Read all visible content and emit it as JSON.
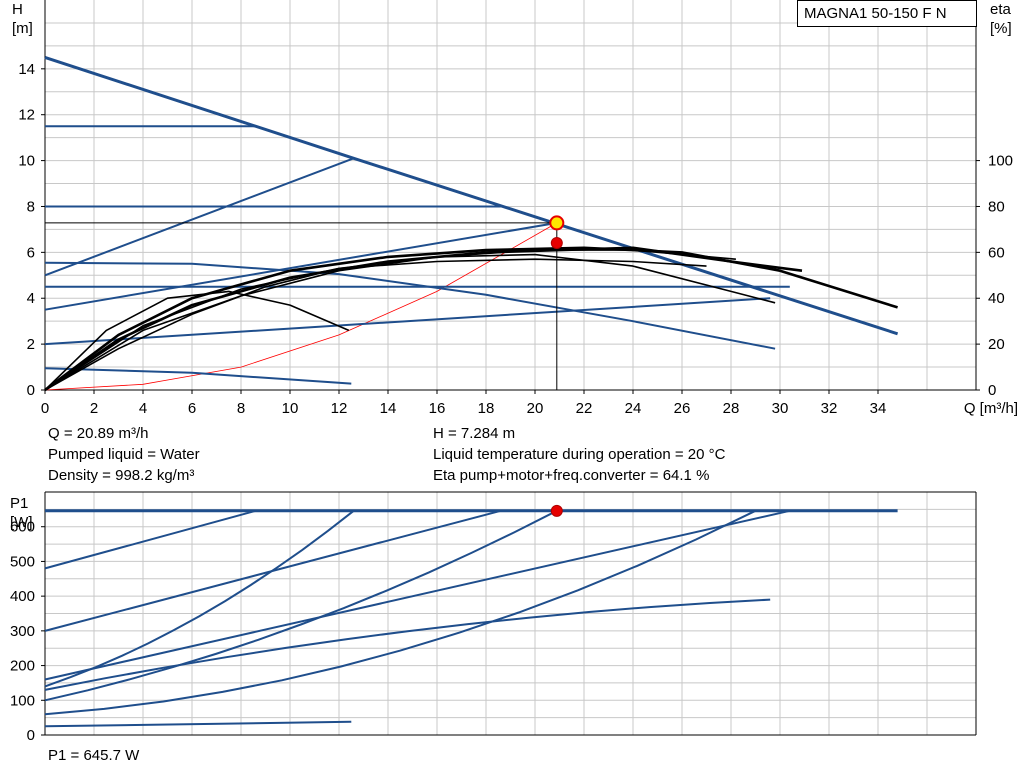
{
  "model": "MAGNA1 50-150 F N",
  "top_info": {
    "left": [
      "Q = 20.89 m³/h",
      "Pumped liquid = Water",
      "Density = 998.2 kg/m³"
    ],
    "right": [
      "H = 7.284 m",
      "Liquid temperature during operation = 20 °C",
      "Eta pump+motor+freq.converter = 64.1 %"
    ]
  },
  "bottom_info": "P1 = 645.7 W",
  "colors": {
    "curve_blue": "#1f4e8c",
    "eta_black": "#000000",
    "system_red": "#ff0000",
    "marker_red": "#e60000",
    "marker_yellow": "#ffe600",
    "grid": "#c8c8c8"
  },
  "chart_data": [
    {
      "type": "line",
      "title": "",
      "xlabel": "Q [m³/h]",
      "ylabel": "H\n[m]",
      "y2label": "eta\n[%]",
      "xlim": [
        0,
        38
      ],
      "ylim": [
        0,
        17
      ],
      "y2lim": [
        0,
        170
      ],
      "x_ticks": [
        0,
        2,
        4,
        6,
        8,
        10,
        12,
        14,
        16,
        18,
        20,
        22,
        24,
        26,
        28,
        30,
        32,
        34
      ],
      "y_ticks": [
        0,
        2,
        4,
        6,
        8,
        10,
        12,
        14
      ],
      "y2_ticks": [
        0,
        20,
        40,
        60,
        80,
        100
      ],
      "grid": true,
      "head_curves": [
        {
          "role": "max",
          "x": [
            0,
            12.6,
            34.8
          ],
          "y": [
            14.5,
            10.1,
            2.45
          ]
        },
        {
          "role": "prop",
          "x": [
            0,
            12.6
          ],
          "y": [
            5.0,
            10.1
          ]
        },
        {
          "role": "const",
          "x": [
            0,
            8.6
          ],
          "y": [
            11.5,
            11.5
          ]
        },
        {
          "role": "const",
          "x": [
            0,
            18.6
          ],
          "y": [
            8.0,
            8.0
          ]
        },
        {
          "role": "const",
          "x": [
            0,
            30.4
          ],
          "y": [
            4.5,
            4.5
          ]
        },
        {
          "role": "prop",
          "x": [
            0,
            29.6
          ],
          "y": [
            2.0,
            4.0
          ]
        },
        {
          "role": "prop",
          "x": [
            0,
            20.89
          ],
          "y": [
            3.5,
            7.284
          ]
        },
        {
          "role": "min",
          "x": [
            0,
            6,
            12,
            18,
            24,
            29.8
          ],
          "y": [
            5.55,
            5.5,
            5.05,
            4.15,
            3.0,
            1.8
          ]
        },
        {
          "role": "min",
          "x": [
            0,
            6,
            12.5
          ],
          "y": [
            0.95,
            0.75,
            0.28
          ]
        }
      ],
      "eta_curves": [
        {
          "x": [
            0,
            3,
            6,
            10,
            14,
            18,
            22,
            26,
            30,
            34.8
          ],
          "y": [
            0,
            24,
            40,
            52,
            58,
            61,
            62,
            60,
            52,
            36
          ]
        },
        {
          "x": [
            0,
            3,
            6,
            10,
            14,
            18,
            21,
            24,
            28,
            30.9
          ],
          "y": [
            0,
            22,
            37,
            49,
            56,
            60,
            61,
            62,
            56,
            52
          ]
        },
        {
          "x": [
            0,
            3,
            6,
            9,
            12,
            16,
            20,
            24,
            28,
            29.8
          ],
          "y": [
            0,
            18,
            33,
            45,
            53,
            58,
            59,
            54,
            43,
            38
          ]
        },
        {
          "x": [
            0,
            2.5,
            5,
            7.5,
            10,
            12.4
          ],
          "y": [
            0,
            26,
            40,
            43,
            37,
            26
          ]
        },
        {
          "x": [
            0,
            4,
            8,
            12,
            16,
            20,
            24,
            27
          ],
          "y": [
            0,
            28,
            44,
            53,
            56,
            57,
            56,
            54
          ]
        },
        {
          "x": [
            0,
            4,
            8,
            12,
            16,
            20,
            24,
            28.2
          ],
          "y": [
            0,
            26,
            41,
            52,
            58,
            61,
            61,
            57
          ]
        }
      ],
      "system_curve": {
        "x": [
          0,
          4,
          8,
          12,
          16,
          20.89
        ],
        "y": [
          0,
          0.25,
          1.0,
          2.4,
          4.3,
          7.284
        ]
      },
      "operating_point": {
        "q": 20.89,
        "h": 7.284,
        "eta": 64.1
      }
    },
    {
      "type": "line",
      "title": "",
      "xlabel": "",
      "ylabel": "P1\n[W]",
      "xlim": [
        0,
        38
      ],
      "ylim": [
        0,
        700
      ],
      "y_ticks": [
        0,
        100,
        200,
        300,
        400,
        500,
        600
      ],
      "grid": true,
      "power_curves": [
        {
          "role": "max",
          "x": [
            0,
            34.8
          ],
          "y": [
            645.7,
            645.7
          ]
        },
        {
          "role": "const",
          "x": [
            0,
            8.6
          ],
          "y": [
            480,
            645.7
          ]
        },
        {
          "role": "prop",
          "x": [
            0,
            12.6
          ],
          "y": [
            140,
            645.7
          ]
        },
        {
          "role": "const",
          "x": [
            0,
            18.6
          ],
          "y": [
            300,
            645.7
          ]
        },
        {
          "role": "prop",
          "x": [
            0,
            20.89
          ],
          "y": [
            100,
            645.7
          ]
        },
        {
          "role": "const",
          "x": [
            0,
            30.4
          ],
          "y": [
            160,
            645.7
          ]
        },
        {
          "role": "prop",
          "x": [
            0,
            29.6
          ],
          "y": [
            130,
            390
          ]
        },
        {
          "role": "min",
          "x": [
            0,
            29.0
          ],
          "y": [
            60,
            645.7
          ]
        },
        {
          "role": "min",
          "x": [
            0,
            12.5
          ],
          "y": [
            25,
            38
          ]
        }
      ],
      "operating_point": {
        "q": 20.89,
        "p1": 645.7
      }
    }
  ]
}
